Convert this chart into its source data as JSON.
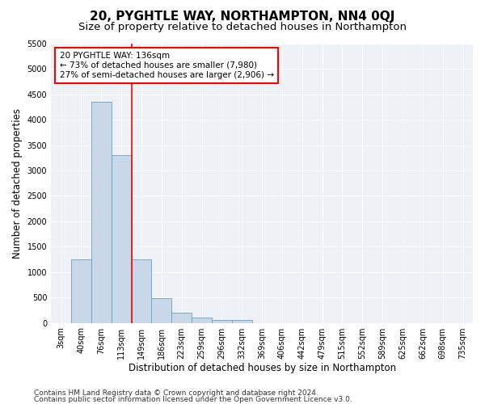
{
  "title": "20, PYGHTLE WAY, NORTHAMPTON, NN4 0QJ",
  "subtitle": "Size of property relative to detached houses in Northampton",
  "xlabel": "Distribution of detached houses by size in Northampton",
  "ylabel": "Number of detached properties",
  "footer1": "Contains HM Land Registry data © Crown copyright and database right 2024.",
  "footer2": "Contains public sector information licensed under the Open Government Licence v3.0.",
  "categories": [
    "3sqm",
    "40sqm",
    "76sqm",
    "113sqm",
    "149sqm",
    "186sqm",
    "223sqm",
    "259sqm",
    "296sqm",
    "332sqm",
    "369sqm",
    "406sqm",
    "442sqm",
    "479sqm",
    "515sqm",
    "552sqm",
    "589sqm",
    "625sqm",
    "662sqm",
    "698sqm",
    "735sqm"
  ],
  "values": [
    0,
    1250,
    4350,
    3300,
    1250,
    480,
    200,
    100,
    60,
    60,
    0,
    0,
    0,
    0,
    0,
    0,
    0,
    0,
    0,
    0,
    0
  ],
  "bar_color": "#c8d8e8",
  "bar_edge_color": "#6a9fc0",
  "vline_x": 3.5,
  "vline_color": "red",
  "annotation_text": "20 PYGHTLE WAY: 136sqm\n← 73% of detached houses are smaller (7,980)\n27% of semi-detached houses are larger (2,906) →",
  "annotation_box_color": "white",
  "annotation_box_edge": "red",
  "ylim": [
    0,
    5500
  ],
  "yticks": [
    0,
    500,
    1000,
    1500,
    2000,
    2500,
    3000,
    3500,
    4000,
    4500,
    5000,
    5500
  ],
  "bg_color": "#eef2f7",
  "title_fontsize": 11,
  "subtitle_fontsize": 9.5,
  "axis_label_fontsize": 8.5,
  "tick_fontsize": 7,
  "footer_fontsize": 6.5,
  "annotation_fontsize": 7.5
}
